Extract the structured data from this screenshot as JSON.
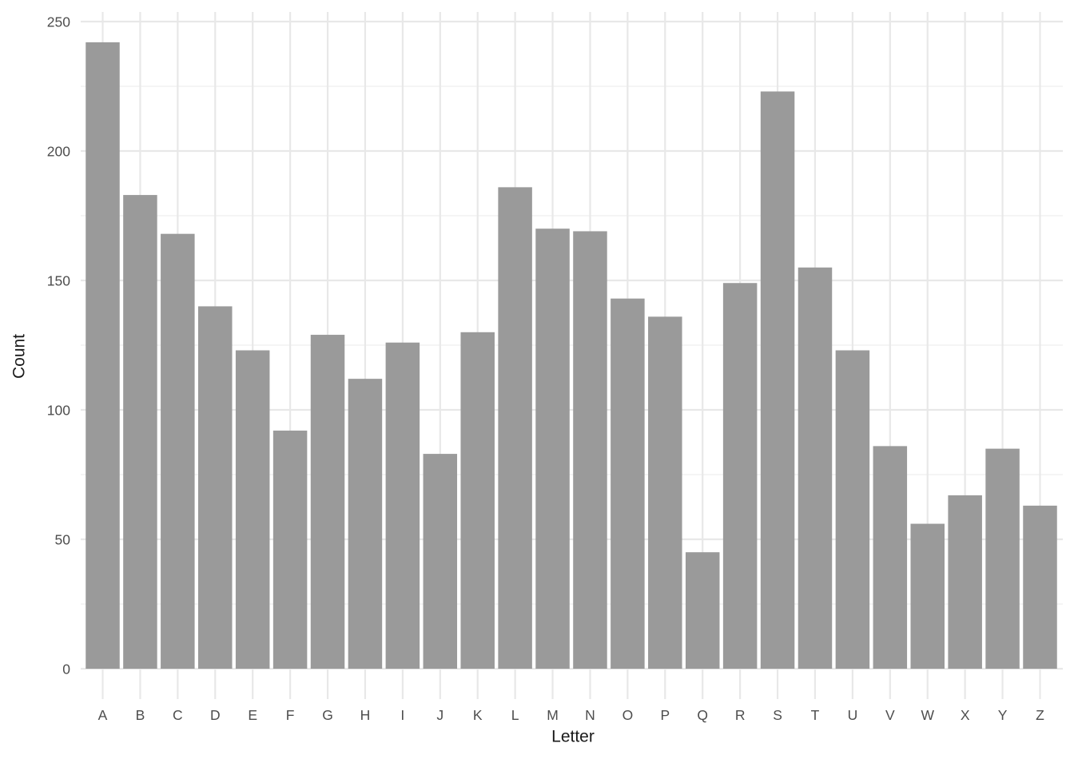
{
  "chart_data": {
    "type": "bar",
    "title": "",
    "xlabel": "Letter",
    "ylabel": "Count",
    "categories": [
      "A",
      "B",
      "C",
      "D",
      "E",
      "F",
      "G",
      "H",
      "I",
      "J",
      "K",
      "L",
      "M",
      "N",
      "O",
      "P",
      "Q",
      "R",
      "S",
      "T",
      "U",
      "V",
      "W",
      "X",
      "Y",
      "Z"
    ],
    "values": [
      242,
      183,
      168,
      140,
      123,
      92,
      129,
      112,
      126,
      83,
      130,
      186,
      170,
      169,
      143,
      136,
      45,
      149,
      223,
      155,
      123,
      86,
      56,
      67,
      85,
      63
    ],
    "ylim": [
      0,
      250
    ],
    "yticks": [
      0,
      50,
      100,
      150,
      200,
      250
    ],
    "yminor": [
      25,
      75,
      125,
      175,
      225
    ],
    "legend": "none",
    "grid": "horizontal major+minor, vertical major at each category",
    "colors": {
      "bar_fill": "#9A9A9A",
      "grid_major": "#E8E8E8",
      "grid_minor": "#F2F2F2",
      "axis_text": "#4D4D4D",
      "axis_title": "#1A1A1A",
      "background": "#FFFFFF"
    }
  }
}
